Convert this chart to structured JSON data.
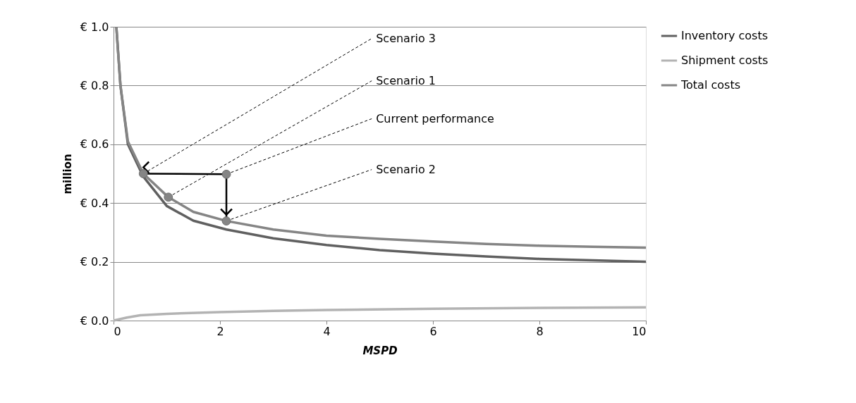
{
  "chart_data": {
    "type": "line",
    "xlabel": "MSPD",
    "ylabel": "million",
    "xlim": [
      0,
      10
    ],
    "xticks": [
      0,
      2,
      4,
      6,
      8,
      10
    ],
    "ylim": [
      0,
      1.0
    ],
    "yticks": [
      {
        "value": 0,
        "label": "€ 0.0"
      },
      {
        "value": 0.2,
        "label": "€ 0.2"
      },
      {
        "value": 0.4,
        "label": "€ 0.4"
      },
      {
        "value": 0.6,
        "label": "€ 0.6"
      },
      {
        "value": 0.8,
        "label": "€ 0.8"
      },
      {
        "value": 1.0,
        "label": "€ 1.0"
      }
    ],
    "grid": "y",
    "legend": "right",
    "marker": "none",
    "line_style": "solid",
    "series": [
      {
        "name": "Inventory costs",
        "color": "#606060",
        "x": [
          0.053,
          0.13,
          0.27,
          0.56,
          1.0,
          1.5,
          2.12,
          3,
          4,
          5,
          6,
          7,
          8,
          9,
          10
        ],
        "values": [
          1.0,
          0.8,
          0.6,
          0.49,
          0.39,
          0.34,
          0.31,
          0.28,
          0.257,
          0.24,
          0.228,
          0.218,
          0.21,
          0.205,
          0.2
        ]
      },
      {
        "name": "Shipment costs",
        "color": "#b3b3b3",
        "x": [
          0,
          0.25,
          0.5,
          1,
          2,
          3,
          4,
          6,
          8,
          10
        ],
        "values": [
          0,
          0.01,
          0.018,
          0.023,
          0.029,
          0.033,
          0.036,
          0.04,
          0.043,
          0.045
        ]
      },
      {
        "name": "Total costs",
        "color": "#858585",
        "x": [
          0.053,
          0.13,
          0.27,
          0.56,
          1.03,
          1.5,
          2.12,
          3,
          4,
          5,
          6,
          7,
          8,
          9,
          10
        ],
        "values": [
          1.0,
          0.8,
          0.61,
          0.5,
          0.42,
          0.37,
          0.339,
          0.31,
          0.289,
          0.278,
          0.269,
          0.261,
          0.255,
          0.251,
          0.248
        ]
      },
      {
        "type": "scatter",
        "marker": "circle",
        "color": "#858585",
        "x": [
          0.56,
          1.03,
          2.12,
          2.12
        ],
        "values": [
          0.5,
          0.42,
          0.498,
          0.339
        ]
      }
    ],
    "annotations": [
      {
        "text": "Scenario 3",
        "x": 0.56,
        "y": 0.5
      },
      {
        "text": "Scenario 1",
        "x": 1.03,
        "y": 0.42
      },
      {
        "text": "Current performance",
        "x": 2.12,
        "y": 0.498
      },
      {
        "text": "Scenario 2",
        "x": 2.12,
        "y": 0.339
      }
    ]
  }
}
